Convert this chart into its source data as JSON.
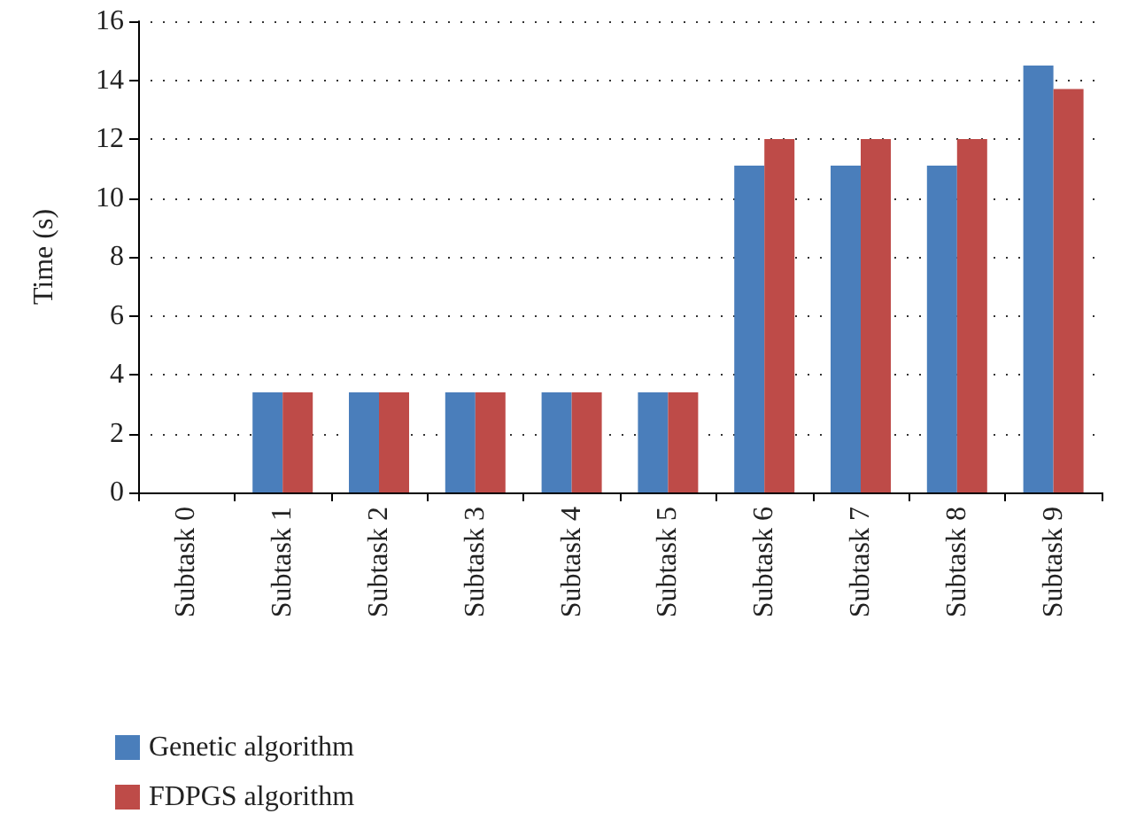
{
  "chart_data": {
    "type": "bar",
    "ylabel": "Time (s)",
    "categories": [
      "Subtask 0",
      "Subtask 1",
      "Subtask 2",
      "Subtask 3",
      "Subtask 4",
      "Subtask 5",
      "Subtask 6",
      "Subtask 7",
      "Subtask 8",
      "Subtask 9"
    ],
    "series": [
      {
        "name": "Genetic algorithm",
        "color": "#4a7ebb",
        "values": [
          0,
          3.4,
          3.4,
          3.4,
          3.4,
          3.4,
          11.1,
          11.1,
          11.1,
          14.5
        ]
      },
      {
        "name": "FDPGS algorithm",
        "color": "#be4b48",
        "values": [
          0,
          3.4,
          3.4,
          3.4,
          3.4,
          3.4,
          12.0,
          12.0,
          12.0,
          13.7
        ]
      }
    ],
    "ylim": [
      0,
      16
    ],
    "yticks": [
      0,
      2,
      4,
      6,
      8,
      10,
      12,
      14,
      16
    ],
    "grid": "y",
    "legend": "bottom left"
  }
}
